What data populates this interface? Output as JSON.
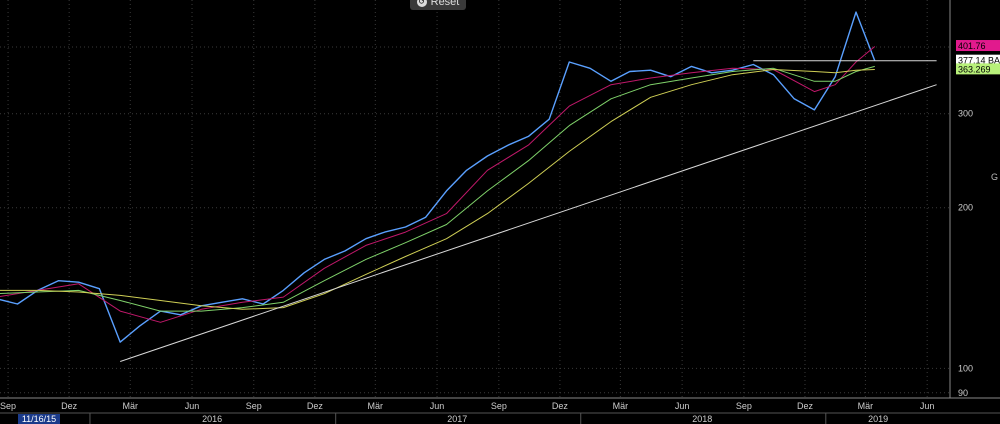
{
  "toolbar": {
    "reset_label": "Reset"
  },
  "side_label": "G",
  "chart_data": {
    "type": "line",
    "scale": "log",
    "ylim": [
      88,
      490
    ],
    "yticks": [
      90,
      100,
      200,
      300
    ],
    "x_months": [
      "Sep",
      "Dez",
      "Mär",
      "Jun",
      "Sep",
      "Dez",
      "Mär",
      "Jun",
      "Sep",
      "Dez",
      "Mär",
      "Jun",
      "Sep",
      "Dez",
      "Mär",
      "Jun"
    ],
    "x_years": [
      "2016",
      "2017",
      "2018",
      "2019"
    ],
    "cursor_date": "11/16/15",
    "grid": true,
    "price_labels": [
      {
        "text": "401.76",
        "value": 401.76,
        "color": "#e11a8d"
      },
      {
        "text": "377.14 BA",
        "value": 377.14,
        "color": "#ffffff"
      },
      {
        "text": "363.269",
        "value": 363.269,
        "color": "#b8f07a"
      }
    ],
    "series": [
      {
        "color": "#5aa0ff",
        "x": [
          "2015-08",
          "2015-09",
          "2015-10",
          "2015-11",
          "2015-12",
          "2016-01",
          "2016-02",
          "2016-03",
          "2016-04",
          "2016-05",
          "2016-06",
          "2016-07",
          "2016-08",
          "2016-09",
          "2016-10",
          "2016-11",
          "2016-12",
          "2017-01",
          "2017-02",
          "2017-03",
          "2017-04",
          "2017-05",
          "2017-06",
          "2017-07",
          "2017-08",
          "2017-09",
          "2017-10",
          "2017-11",
          "2017-12",
          "2018-01",
          "2018-02",
          "2018-03",
          "2018-04",
          "2018-05",
          "2018-06",
          "2018-07",
          "2018-08",
          "2018-09",
          "2018-10",
          "2018-11",
          "2018-12",
          "2019-01",
          "2019-02",
          "2019-03"
        ],
        "values": [
          135,
          132,
          140,
          146,
          145,
          141,
          112,
          120,
          128,
          126,
          131,
          133,
          135,
          132,
          140,
          151,
          160,
          166,
          175,
          180,
          184,
          192,
          215,
          235,
          250,
          262,
          272,
          293,
          375,
          365,
          345,
          360,
          362,
          352,
          368,
          358,
          362,
          371,
          355,
          320,
          305,
          352,
          465,
          377
        ]
      },
      {
        "color": "#c0186a",
        "x": [
          "2015-08",
          "2015-10",
          "2015-12",
          "2016-02",
          "2016-04",
          "2016-06",
          "2016-08",
          "2016-10",
          "2016-12",
          "2017-02",
          "2017-04",
          "2017-06",
          "2017-08",
          "2017-10",
          "2017-12",
          "2018-02",
          "2018-04",
          "2018-06",
          "2018-08",
          "2018-10",
          "2018-12",
          "2019-01",
          "2019-02",
          "2019-03"
        ],
        "values": [
          136,
          140,
          144,
          128,
          122,
          129,
          133,
          136,
          154,
          170,
          180,
          195,
          235,
          262,
          310,
          340,
          350,
          358,
          365,
          363,
          330,
          340,
          375,
          401
        ]
      },
      {
        "color": "#7fd16a",
        "x": [
          "2015-08",
          "2015-10",
          "2015-12",
          "2016-02",
          "2016-04",
          "2016-06",
          "2016-08",
          "2016-10",
          "2016-12",
          "2017-02",
          "2017-04",
          "2017-06",
          "2017-08",
          "2017-10",
          "2017-12",
          "2018-02",
          "2018-04",
          "2018-06",
          "2018-08",
          "2018-10",
          "2018-12",
          "2019-01",
          "2019-02",
          "2019-03"
        ],
        "values": [
          138,
          139,
          140,
          134,
          128,
          128,
          130,
          133,
          146,
          160,
          172,
          186,
          215,
          245,
          285,
          320,
          340,
          350,
          360,
          365,
          345,
          345,
          360,
          368
        ]
      },
      {
        "color": "#cfcf55",
        "x": [
          "2015-08",
          "2015-10",
          "2015-12",
          "2016-02",
          "2016-04",
          "2016-06",
          "2016-08",
          "2016-10",
          "2016-12",
          "2017-02",
          "2017-04",
          "2017-06",
          "2017-08",
          "2017-10",
          "2017-12",
          "2018-02",
          "2018-04",
          "2018-06",
          "2018-08",
          "2018-10",
          "2018-12",
          "2019-01",
          "2019-02",
          "2019-03"
        ],
        "values": [
          140,
          140,
          139,
          137,
          134,
          131,
          129,
          130,
          138,
          150,
          162,
          175,
          195,
          222,
          255,
          290,
          322,
          340,
          355,
          363,
          360,
          358,
          362,
          363
        ]
      },
      {
        "color": "#d8d8d8",
        "x": [
          "2016-02",
          "2019-06"
        ],
        "values": [
          103,
          340
        ]
      },
      {
        "color": "#d8d8d8",
        "x": [
          "2018-09",
          "2019-06"
        ],
        "values": [
          377.14,
          377.14
        ]
      }
    ]
  }
}
